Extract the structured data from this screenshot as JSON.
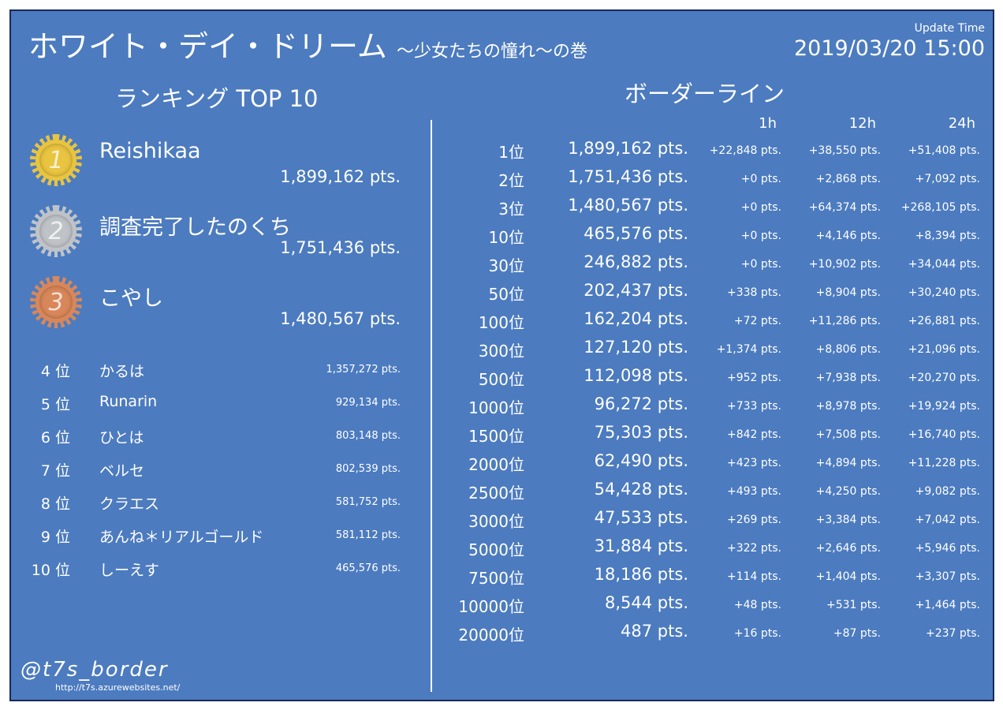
{
  "header": {
    "title": "ホワイト・デイ・ドリーム",
    "subtitle": "～少女たちの憧れ～の巻",
    "update_label": "Update Time",
    "update_time": "2019/03/20 15:00"
  },
  "ranking": {
    "heading": "ランキング TOP 10",
    "top3": [
      {
        "medal": "1",
        "name": "Reishikaa",
        "points": "1,899,162 pts.",
        "color": "#e8c440"
      },
      {
        "medal": "2",
        "name": "調査完了したのくち",
        "points": "1,751,436 pts.",
        "color": "#bfc3c8"
      },
      {
        "medal": "3",
        "name": "こやし",
        "points": "1,480,567 pts.",
        "color": "#d8875a"
      }
    ],
    "rest": [
      {
        "rank": "4 位",
        "name": "かるは",
        "points": "1,357,272 pts."
      },
      {
        "rank": "5 位",
        "name": "Runarin",
        "points": "929,134 pts."
      },
      {
        "rank": "6 位",
        "name": "ひとは",
        "points": "803,148 pts."
      },
      {
        "rank": "7 位",
        "name": "ベルセ",
        "points": "802,539 pts."
      },
      {
        "rank": "8 位",
        "name": "クラエス",
        "points": "581,752 pts."
      },
      {
        "rank": "9 位",
        "name": "あんね＊リアルゴールド",
        "points": "581,112 pts."
      },
      {
        "rank": "10 位",
        "name": "しーえす",
        "points": "465,576 pts."
      }
    ]
  },
  "border": {
    "heading": "ボーダーライン",
    "cols": [
      "1h",
      "12h",
      "24h"
    ],
    "rows": [
      {
        "rank": "1位",
        "points": "1,899,162 pts.",
        "h1": "+22,848 pts.",
        "h12": "+38,550 pts.",
        "h24": "+51,408 pts."
      },
      {
        "rank": "2位",
        "points": "1,751,436 pts.",
        "h1": "+0 pts.",
        "h12": "+2,868 pts.",
        "h24": "+7,092 pts."
      },
      {
        "rank": "3位",
        "points": "1,480,567 pts.",
        "h1": "+0 pts.",
        "h12": "+64,374 pts.",
        "h24": "+268,105 pts."
      },
      {
        "rank": "10位",
        "points": "465,576 pts.",
        "h1": "+0 pts.",
        "h12": "+4,146 pts.",
        "h24": "+8,394 pts."
      },
      {
        "rank": "30位",
        "points": "246,882 pts.",
        "h1": "+0 pts.",
        "h12": "+10,902 pts.",
        "h24": "+34,044 pts."
      },
      {
        "rank": "50位",
        "points": "202,437 pts.",
        "h1": "+338 pts.",
        "h12": "+8,904 pts.",
        "h24": "+30,240 pts."
      },
      {
        "rank": "100位",
        "points": "162,204 pts.",
        "h1": "+72 pts.",
        "h12": "+11,286 pts.",
        "h24": "+26,881 pts."
      },
      {
        "rank": "300位",
        "points": "127,120 pts.",
        "h1": "+1,374 pts.",
        "h12": "+8,806 pts.",
        "h24": "+21,096 pts."
      },
      {
        "rank": "500位",
        "points": "112,098 pts.",
        "h1": "+952 pts.",
        "h12": "+7,938 pts.",
        "h24": "+20,270 pts."
      },
      {
        "rank": "1000位",
        "points": "96,272 pts.",
        "h1": "+733 pts.",
        "h12": "+8,978 pts.",
        "h24": "+19,924 pts."
      },
      {
        "rank": "1500位",
        "points": "75,303 pts.",
        "h1": "+842 pts.",
        "h12": "+7,508 pts.",
        "h24": "+16,740 pts."
      },
      {
        "rank": "2000位",
        "points": "62,490 pts.",
        "h1": "+423 pts.",
        "h12": "+4,894 pts.",
        "h24": "+11,228 pts."
      },
      {
        "rank": "2500位",
        "points": "54,428 pts.",
        "h1": "+493 pts.",
        "h12": "+4,250 pts.",
        "h24": "+9,082 pts."
      },
      {
        "rank": "3000位",
        "points": "47,533 pts.",
        "h1": "+269 pts.",
        "h12": "+3,384 pts.",
        "h24": "+7,042 pts."
      },
      {
        "rank": "5000位",
        "points": "31,884 pts.",
        "h1": "+322 pts.",
        "h12": "+2,646 pts.",
        "h24": "+5,946 pts."
      },
      {
        "rank": "7500位",
        "points": "18,186 pts.",
        "h1": "+114 pts.",
        "h12": "+1,404 pts.",
        "h24": "+3,307 pts."
      },
      {
        "rank": "10000位",
        "points": "8,544 pts.",
        "h1": "+48 pts.",
        "h12": "+531 pts.",
        "h24": "+1,464 pts."
      },
      {
        "rank": "20000位",
        "points": "487 pts.",
        "h1": "+16 pts.",
        "h12": "+87 pts.",
        "h24": "+237 pts."
      }
    ]
  },
  "footer": {
    "handle": "@t7s_border",
    "url": "http://t7s.azurewebsites.net/"
  }
}
